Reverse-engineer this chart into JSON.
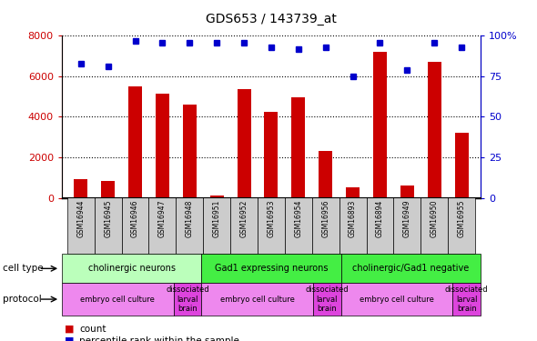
{
  "title": "GDS653 / 143739_at",
  "samples": [
    "GSM16944",
    "GSM16945",
    "GSM16946",
    "GSM16947",
    "GSM16948",
    "GSM16951",
    "GSM16952",
    "GSM16953",
    "GSM16954",
    "GSM16956",
    "GSM16893",
    "GSM16894",
    "GSM16949",
    "GSM16950",
    "GSM16955"
  ],
  "counts": [
    900,
    850,
    5500,
    5150,
    4600,
    100,
    5350,
    4250,
    4950,
    2300,
    500,
    7200,
    600,
    6700,
    3200
  ],
  "percentile": [
    83,
    81,
    97,
    96,
    96,
    96,
    96,
    93,
    92,
    93,
    75,
    96,
    79,
    96,
    93
  ],
  "ylim_left": [
    0,
    8000
  ],
  "ylim_right": [
    0,
    100
  ],
  "yticks_left": [
    0,
    2000,
    4000,
    6000,
    8000
  ],
  "yticks_right": [
    0,
    25,
    50,
    75,
    100
  ],
  "bar_color": "#cc0000",
  "dot_color": "#0000cc",
  "cell_type_ranges": [
    {
      "label": "cholinergic neurons",
      "start": 0,
      "end": 5,
      "color": "#bbffbb"
    },
    {
      "label": "Gad1 expressing neurons",
      "start": 5,
      "end": 10,
      "color": "#44ee44"
    },
    {
      "label": "cholinergic/Gad1 negative",
      "start": 10,
      "end": 15,
      "color": "#44ee44"
    }
  ],
  "protocol_ranges": [
    {
      "label": "embryo cell culture",
      "start": 0,
      "end": 4,
      "color": "#ee88ee"
    },
    {
      "label": "dissociated\nlarval\nbrain",
      "start": 4,
      "end": 5,
      "color": "#dd44dd"
    },
    {
      "label": "embryo cell culture",
      "start": 5,
      "end": 9,
      "color": "#ee88ee"
    },
    {
      "label": "dissociated\nlarval\nbrain",
      "start": 9,
      "end": 10,
      "color": "#dd44dd"
    },
    {
      "label": "embryo cell culture",
      "start": 10,
      "end": 14,
      "color": "#ee88ee"
    },
    {
      "label": "dissociated\nlarval\nbrain",
      "start": 14,
      "end": 15,
      "color": "#dd44dd"
    }
  ],
  "legend_count_label": "count",
  "legend_pct_label": "percentile rank within the sample",
  "cell_type_label": "cell type",
  "protocol_label": "protocol",
  "tick_color_left": "#cc0000",
  "tick_color_right": "#0000cc",
  "plot_bg_color": "#ffffff",
  "sample_box_color": "#cccccc",
  "fig_bg_color": "#ffffff"
}
